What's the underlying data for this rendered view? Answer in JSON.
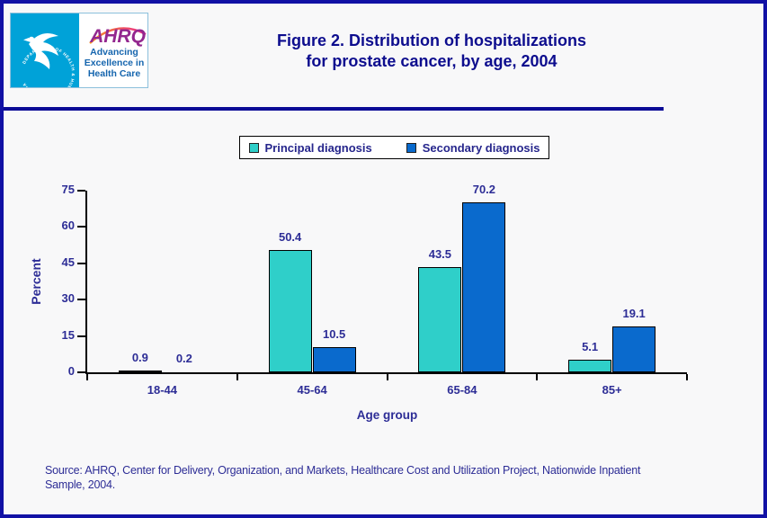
{
  "header": {
    "logo": {
      "seal_text": "DEPARTMENT OF HEALTH & HUMAN SERVICES • USA",
      "ahrq": "AHRQ",
      "tagline1": "Advancing",
      "tagline2": "Excellence in",
      "tagline3": "Health Care"
    },
    "title_line1": "Figure 2. Distribution of hospitalizations",
    "title_line2": "for prostate cancer, by age, 2004"
  },
  "chart_data": {
    "type": "bar",
    "title": "Figure 2. Distribution of hospitalizations for prostate cancer, by age, 2004",
    "categories": [
      "18-44",
      "45-64",
      "65-84",
      "85+"
    ],
    "series": [
      {
        "name": "Principal diagnosis",
        "color": "#2FCFC9",
        "values": [
          0.9,
          50.4,
          43.5,
          5.1
        ]
      },
      {
        "name": "Secondary diagnosis",
        "color": "#0A6ACD",
        "values": [
          0.2,
          10.5,
          70.2,
          19.1
        ]
      }
    ],
    "xlabel": "Age group",
    "ylabel": "Percent",
    "ylim": [
      0,
      75
    ],
    "yticks": [
      0,
      15,
      30,
      45,
      60,
      75
    ],
    "grid": false,
    "legend_position": "top-center",
    "bar_value_labels": true
  },
  "footer": {
    "source_line1": "Source: AHRQ, Center for Delivery, Organization, and Markets, Healthcare Cost and Utilization Project, Nationwide Inpatient",
    "source_line2": "Sample, 2004."
  },
  "colors": {
    "page_border": "#1111A5",
    "divider": "#0A0A96",
    "title_text": "#0D0D8E",
    "chart_text": "#2D2D96",
    "axis": "#000000",
    "principal_bar": "#2FCFC9",
    "secondary_bar": "#0A6ACD",
    "hhs_seal_cyan": "#00A2D8",
    "ahrq_purple": "#93278F",
    "tagline_blue": "#1565AE",
    "arc_gradient_start": "#F7941E",
    "arc_gradient_end": "#EC268F"
  }
}
